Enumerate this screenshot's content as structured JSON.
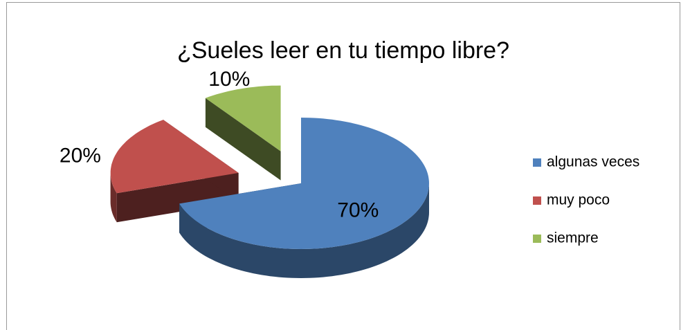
{
  "chart_data": {
    "type": "pie",
    "title": "¿Sueles leer en tu tiempo libre?",
    "categories": [
      "algunas veces",
      "muy poco",
      "siempre"
    ],
    "values": [
      70,
      20,
      10
    ],
    "value_labels": [
      "70%",
      "20%",
      "10%"
    ],
    "colors": [
      "#4f81bd",
      "#c0504d",
      "#9bbb59"
    ],
    "legend": "right"
  }
}
